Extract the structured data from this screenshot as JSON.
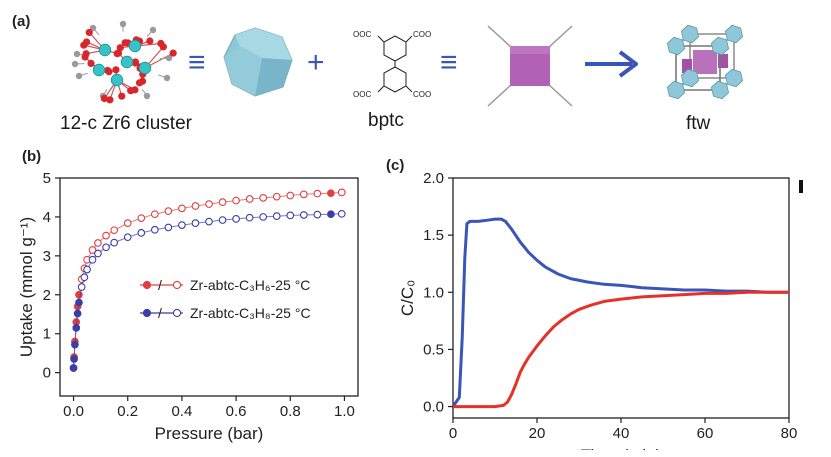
{
  "panels": {
    "a": "(a)",
    "b": "(b)",
    "c": "(c)"
  },
  "scheme": {
    "cluster_label": "12-c Zr6 cluster",
    "linker_label": "bptc",
    "product_label": "ftw",
    "equiv_symbol": "≡",
    "plus_symbol": "+",
    "linker_groups": {
      "top_left": "OOC",
      "top_right": "COO",
      "bottom_left": "OOC",
      "bottom_right": "COO"
    },
    "colors": {
      "cluster_polyhedron": "#8ec8d8",
      "linker_square": "#b262b5",
      "arrow": "#3a55b8",
      "zr_atom": "#35c3c8",
      "o_atom": "#d9262a"
    }
  },
  "chart_data": [
    {
      "panel": "(b)",
      "type": "line",
      "xlabel": "Pressure (bar)",
      "ylabel": "Uptake (mmol g⁻¹)",
      "xlim": [
        -0.05,
        1.05
      ],
      "ylim": [
        -0.6,
        5.0
      ],
      "xticks": [
        "0.0",
        "0.2",
        "0.4",
        "0.6",
        "0.8",
        "1.0"
      ],
      "yticks": [
        "0",
        "1",
        "2",
        "3",
        "4",
        "5"
      ],
      "legend_position": "right",
      "series": [
        {
          "name": "Zr-abtc-C₃H₆-25 °C",
          "color": "#e0403f",
          "x": [
            0.0,
            0.002,
            0.005,
            0.01,
            0.015,
            0.02,
            0.03,
            0.04,
            0.05,
            0.07,
            0.09,
            0.12,
            0.15,
            0.2,
            0.25,
            0.3,
            0.35,
            0.4,
            0.45,
            0.5,
            0.55,
            0.6,
            0.65,
            0.7,
            0.75,
            0.8,
            0.85,
            0.9,
            0.95,
            0.99
          ],
          "y": [
            0.12,
            0.4,
            0.8,
            1.3,
            1.7,
            2.0,
            2.4,
            2.68,
            2.9,
            3.15,
            3.33,
            3.52,
            3.66,
            3.84,
            3.97,
            4.07,
            4.15,
            4.22,
            4.28,
            4.33,
            4.38,
            4.42,
            4.46,
            4.49,
            4.52,
            4.55,
            4.58,
            4.6,
            4.61,
            4.63
          ]
        },
        {
          "name": "Zr-abtc-C₃H₈-25 °C",
          "color": "#3a3ea8",
          "x": [
            0.0,
            0.002,
            0.005,
            0.01,
            0.015,
            0.02,
            0.03,
            0.04,
            0.05,
            0.07,
            0.09,
            0.12,
            0.15,
            0.2,
            0.25,
            0.3,
            0.35,
            0.4,
            0.45,
            0.5,
            0.55,
            0.6,
            0.65,
            0.7,
            0.75,
            0.8,
            0.85,
            0.9,
            0.95,
            0.99
          ],
          "y": [
            0.12,
            0.35,
            0.72,
            1.15,
            1.52,
            1.8,
            2.2,
            2.45,
            2.65,
            2.9,
            3.06,
            3.22,
            3.34,
            3.48,
            3.59,
            3.67,
            3.73,
            3.79,
            3.84,
            3.88,
            3.92,
            3.95,
            3.98,
            4.0,
            4.02,
            4.04,
            4.05,
            4.06,
            4.07,
            4.08
          ]
        }
      ]
    },
    {
      "panel": "(c)",
      "type": "line",
      "xlabel": "Time (min)",
      "ylabel": "C/C₀",
      "xlim": [
        0,
        80
      ],
      "ylim": [
        -0.1,
        2.0
      ],
      "xticks": [
        "0",
        "20",
        "40",
        "60",
        "80"
      ],
      "yticks": [
        "0.0",
        "0.5",
        "1.0",
        "1.5",
        "2.0"
      ],
      "grid": false,
      "series": [
        {
          "color": "#3a55b8",
          "x": [
            0,
            1.5,
            2.2,
            2.8,
            3.3,
            4,
            6,
            8,
            10,
            11.5,
            12.5,
            14,
            16,
            18,
            20,
            22,
            25,
            28,
            32,
            36,
            40,
            45,
            50,
            55,
            60,
            65,
            70,
            75,
            80
          ],
          "y": [
            0.0,
            0.08,
            0.6,
            1.3,
            1.6,
            1.62,
            1.62,
            1.63,
            1.64,
            1.64,
            1.62,
            1.55,
            1.44,
            1.35,
            1.28,
            1.22,
            1.16,
            1.12,
            1.09,
            1.07,
            1.06,
            1.04,
            1.03,
            1.02,
            1.02,
            1.01,
            1.01,
            1.0,
            1.0
          ]
        },
        {
          "color": "#e53128",
          "x": [
            0,
            5,
            10,
            12,
            13,
            14,
            15,
            16,
            17,
            18,
            20,
            22,
            24,
            26,
            28,
            30,
            33,
            36,
            40,
            45,
            50,
            55,
            60,
            65,
            70,
            75,
            80
          ],
          "y": [
            0.0,
            0.0,
            0.0,
            0.01,
            0.04,
            0.11,
            0.2,
            0.3,
            0.37,
            0.43,
            0.53,
            0.62,
            0.7,
            0.76,
            0.81,
            0.85,
            0.89,
            0.92,
            0.94,
            0.96,
            0.97,
            0.98,
            0.99,
            0.99,
            1.0,
            1.0,
            1.0
          ]
        }
      ]
    }
  ]
}
